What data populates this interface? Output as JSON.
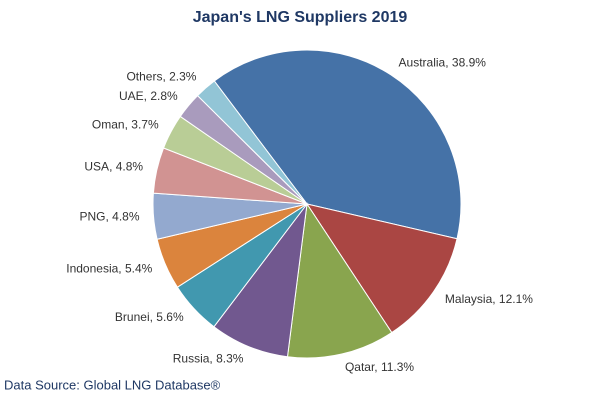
{
  "chart_data": {
    "type": "pie",
    "title": "Japan's LNG Suppliers 2019",
    "values": [
      38.9,
      12.1,
      11.3,
      8.3,
      5.6,
      5.4,
      4.8,
      4.8,
      3.7,
      2.8,
      2.3
    ],
    "value_labels": [
      "Australia, 38.9%",
      "Malaysia, 12.1%",
      "Qatar, 11.3%",
      "Russia, 8.3%",
      "Brunei, 5.6%",
      "Indonesia, 5.4%",
      "PNG, 4.8%",
      "USA, 4.8%",
      "Oman, 3.7%",
      "UAE, 2.8%",
      "Others, 2.3%"
    ],
    "colors": [
      "#4572a7",
      "#aa4643",
      "#89a54e",
      "#71588f",
      "#4198af",
      "#db843d",
      "#93a9cf",
      "#d19392",
      "#b9cd96",
      "#a99bbd",
      "#92c5d6"
    ],
    "source": "Data Source: Global LNG Database®"
  }
}
